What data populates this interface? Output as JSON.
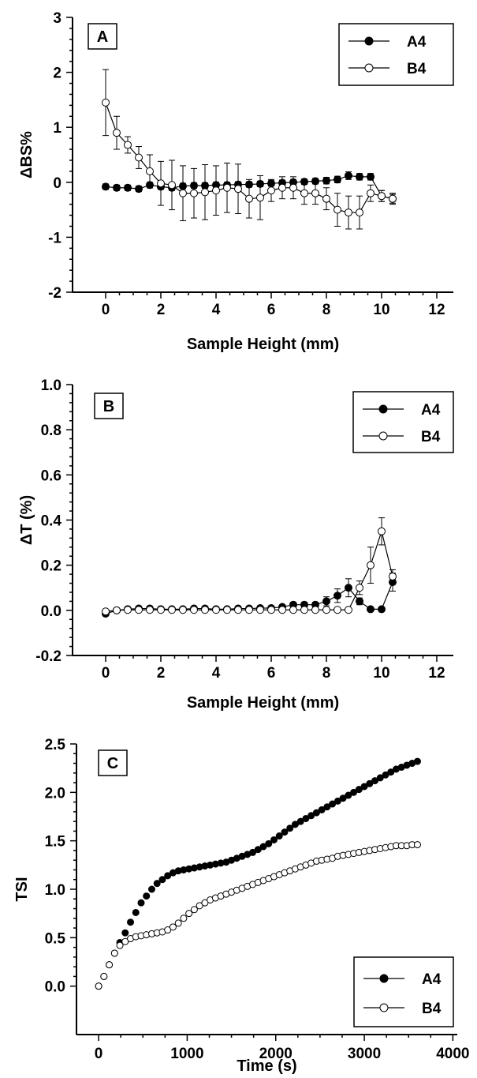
{
  "chart_data": [
    {
      "type": "scatter",
      "panel_label": "A",
      "xlabel": "Sample Height (mm)",
      "ylabel": "ΔBS%",
      "xlim": [
        -1.2,
        12.6
      ],
      "ylim": [
        -2,
        3
      ],
      "xticks": [
        0,
        2,
        4,
        6,
        8,
        10,
        12
      ],
      "yticks": [
        -2,
        -1,
        0,
        1,
        2,
        3
      ],
      "legend_position": "top-right",
      "series": [
        {
          "name": "A4",
          "marker": "filled-circle",
          "color": "#000000",
          "x": [
            0.0,
            0.4,
            0.8,
            1.2,
            1.6,
            2.0,
            2.4,
            2.8,
            3.2,
            3.6,
            4.0,
            4.4,
            4.8,
            5.2,
            5.6,
            6.0,
            6.4,
            6.8,
            7.2,
            7.6,
            8.0,
            8.4,
            8.8,
            9.2,
            9.6,
            10.0,
            10.4
          ],
          "y": [
            -0.08,
            -0.1,
            -0.1,
            -0.12,
            -0.05,
            -0.08,
            -0.1,
            -0.07,
            -0.06,
            -0.06,
            -0.05,
            -0.05,
            -0.04,
            -0.04,
            -0.03,
            -0.02,
            -0.01,
            0.0,
            0.01,
            0.02,
            0.03,
            0.05,
            0.12,
            0.1,
            0.1,
            -0.25,
            -0.3
          ],
          "err": [
            0.05,
            0.05,
            0.05,
            0.05,
            0.05,
            0.05,
            0.05,
            0.05,
            0.05,
            0.05,
            0.05,
            0.05,
            0.05,
            0.05,
            0.05,
            0.05,
            0.05,
            0.05,
            0.05,
            0.05,
            0.06,
            0.06,
            0.07,
            0.06,
            0.06,
            0.1,
            0.1
          ]
        },
        {
          "name": "B4",
          "marker": "open-circle",
          "color": "#000000",
          "x": [
            0.0,
            0.4,
            0.8,
            1.2,
            1.6,
            2.0,
            2.4,
            2.8,
            3.2,
            3.6,
            4.0,
            4.4,
            4.8,
            5.2,
            5.6,
            6.0,
            6.4,
            6.8,
            7.2,
            7.6,
            8.0,
            8.4,
            8.8,
            9.2,
            9.6,
            10.0,
            10.4
          ],
          "y": [
            1.45,
            0.9,
            0.68,
            0.45,
            0.2,
            -0.02,
            -0.05,
            -0.2,
            -0.2,
            -0.18,
            -0.15,
            -0.1,
            -0.12,
            -0.3,
            -0.28,
            -0.15,
            -0.1,
            -0.1,
            -0.2,
            -0.2,
            -0.3,
            -0.5,
            -0.55,
            -0.55,
            -0.2,
            -0.25,
            -0.3
          ],
          "err": [
            0.6,
            0.3,
            0.15,
            0.2,
            0.3,
            0.4,
            0.45,
            0.5,
            0.45,
            0.5,
            0.45,
            0.45,
            0.45,
            0.35,
            0.4,
            0.2,
            0.2,
            0.2,
            0.2,
            0.2,
            0.2,
            0.3,
            0.3,
            0.3,
            0.15,
            0.1,
            0.08
          ]
        }
      ]
    },
    {
      "type": "scatter",
      "panel_label": "B",
      "xlabel": "Sample Height (mm)",
      "ylabel": "ΔT (%)",
      "xlim": [
        -1.2,
        12.6
      ],
      "ylim": [
        -0.2,
        1.0
      ],
      "xticks": [
        0,
        2,
        4,
        6,
        8,
        10,
        12
      ],
      "yticks": [
        "-0.2",
        "0.0",
        "0.2",
        "0.4",
        "0.6",
        "0.8",
        "1.0"
      ],
      "legend_position": "top-right",
      "series": [
        {
          "name": "A4",
          "marker": "filled-circle",
          "color": "#000000",
          "x": [
            0.0,
            0.4,
            0.8,
            1.2,
            1.6,
            2.0,
            2.4,
            2.8,
            3.2,
            3.6,
            4.0,
            4.4,
            4.8,
            5.2,
            5.6,
            6.0,
            6.4,
            6.8,
            7.2,
            7.6,
            8.0,
            8.4,
            8.8,
            9.2,
            9.6,
            10.0,
            10.4
          ],
          "y": [
            -0.015,
            0.0,
            0.005,
            0.008,
            0.008,
            0.005,
            0.005,
            0.005,
            0.008,
            0.008,
            0.005,
            0.005,
            0.008,
            0.008,
            0.01,
            0.01,
            0.015,
            0.025,
            0.025,
            0.025,
            0.04,
            0.065,
            0.1,
            0.04,
            0.005,
            0.005,
            0.125
          ],
          "err": [
            0.008,
            0.005,
            0.005,
            0.005,
            0.005,
            0.005,
            0.005,
            0.005,
            0.005,
            0.005,
            0.005,
            0.005,
            0.005,
            0.005,
            0.005,
            0.005,
            0.005,
            0.01,
            0.01,
            0.01,
            0.02,
            0.03,
            0.04,
            0.015,
            0.005,
            0.005,
            0.04
          ]
        },
        {
          "name": "B4",
          "marker": "open-circle",
          "color": "#000000",
          "x": [
            0.0,
            0.4,
            0.8,
            1.2,
            1.6,
            2.0,
            2.4,
            2.8,
            3.2,
            3.6,
            4.0,
            4.4,
            4.8,
            5.2,
            5.6,
            6.0,
            6.4,
            6.8,
            7.2,
            7.6,
            8.0,
            8.4,
            8.8,
            9.2,
            9.6,
            10.0,
            10.4
          ],
          "y": [
            -0.005,
            0.0,
            0.002,
            0.002,
            0.002,
            0.002,
            0.002,
            0.002,
            0.002,
            0.002,
            0.002,
            0.002,
            0.002,
            0.002,
            0.002,
            0.002,
            0.002,
            0.002,
            0.002,
            0.002,
            0.002,
            0.002,
            0.002,
            0.1,
            0.2,
            0.35,
            0.15
          ],
          "err": [
            0.005,
            0.003,
            0.003,
            0.003,
            0.003,
            0.003,
            0.003,
            0.003,
            0.003,
            0.003,
            0.003,
            0.003,
            0.003,
            0.003,
            0.003,
            0.003,
            0.003,
            0.003,
            0.003,
            0.003,
            0.003,
            0.003,
            0.003,
            0.03,
            0.08,
            0.06,
            0.03
          ]
        }
      ]
    },
    {
      "type": "scatter",
      "panel_label": "C",
      "xlabel": "Time (s)",
      "ylabel": "TSI",
      "xlim": [
        -250,
        4050
      ],
      "ylim": [
        -0.5,
        2.5
      ],
      "xticks": [
        0,
        1000,
        2000,
        3000,
        4000
      ],
      "yticks": [
        "0.0",
        "0.5",
        "1.0",
        "1.5",
        "2.0",
        "2.5"
      ],
      "legend_position": "bottom-right",
      "series": [
        {
          "name": "A4",
          "marker": "filled-circle",
          "color": "#000000",
          "x_start": 0,
          "x_step": 60,
          "y": [
            0.0,
            0.1,
            0.22,
            0.34,
            0.45,
            0.55,
            0.66,
            0.76,
            0.86,
            0.93,
            1.0,
            1.06,
            1.1,
            1.14,
            1.17,
            1.19,
            1.2,
            1.21,
            1.22,
            1.23,
            1.24,
            1.25,
            1.26,
            1.27,
            1.28,
            1.3,
            1.32,
            1.34,
            1.36,
            1.38,
            1.41,
            1.44,
            1.47,
            1.51,
            1.55,
            1.59,
            1.63,
            1.67,
            1.7,
            1.73,
            1.76,
            1.79,
            1.82,
            1.85,
            1.88,
            1.91,
            1.94,
            1.97,
            2.0,
            2.03,
            2.06,
            2.09,
            2.12,
            2.15,
            2.18,
            2.21,
            2.24,
            2.26,
            2.28,
            2.3,
            2.32
          ]
        },
        {
          "name": "B4",
          "marker": "open-circle",
          "color": "#000000",
          "x_start": 0,
          "x_step": 60,
          "y": [
            0.0,
            0.1,
            0.22,
            0.34,
            0.42,
            0.46,
            0.49,
            0.51,
            0.52,
            0.53,
            0.54,
            0.55,
            0.56,
            0.58,
            0.61,
            0.65,
            0.7,
            0.75,
            0.79,
            0.83,
            0.86,
            0.89,
            0.91,
            0.93,
            0.95,
            0.97,
            0.99,
            1.01,
            1.03,
            1.05,
            1.07,
            1.09,
            1.11,
            1.13,
            1.15,
            1.17,
            1.19,
            1.21,
            1.23,
            1.25,
            1.27,
            1.29,
            1.3,
            1.31,
            1.32,
            1.34,
            1.35,
            1.36,
            1.37,
            1.38,
            1.39,
            1.4,
            1.41,
            1.42,
            1.43,
            1.44,
            1.45,
            1.45,
            1.45,
            1.46,
            1.46
          ]
        }
      ]
    }
  ]
}
